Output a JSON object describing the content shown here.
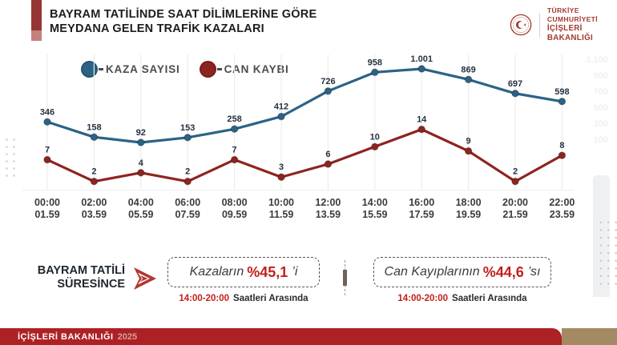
{
  "header": {
    "title_line1": "BAYRAM TATİLİNDE SAAT DİLİMLERİNE GÖRE",
    "title_line2": "MEYDANA GELEN TRAFİK KAZALARI",
    "logo": {
      "line1": "TÜRKİYE CUMHURİYETİ",
      "line2": "İÇİŞLERİ BAKANLIĞI"
    }
  },
  "legend": [
    {
      "label": "KAZA SAYISI",
      "color": "#2b6386"
    },
    {
      "label": "CAN KAYBI",
      "color": "#8e2420"
    }
  ],
  "chart_data": {
    "type": "line",
    "title": "Bayram tatilinde saat dilimlerine göre meydana gelen trafik kazaları",
    "categories": [
      [
        "00:00",
        "01.59"
      ],
      [
        "02:00",
        "03.59"
      ],
      [
        "04:00",
        "05.59"
      ],
      [
        "06:00",
        "07.59"
      ],
      [
        "08:00",
        "09.59"
      ],
      [
        "10:00",
        "11.59"
      ],
      [
        "12:00",
        "13.59"
      ],
      [
        "14:00",
        "15.59"
      ],
      [
        "16:00",
        "17.59"
      ],
      [
        "18:00",
        "19.59"
      ],
      [
        "20:00",
        "21.59"
      ],
      [
        "22:00",
        "23.59"
      ]
    ],
    "series": [
      {
        "name": "KAZA SAYISI",
        "color": "#2b6386",
        "values": [
          346,
          158,
          92,
          153,
          258,
          412,
          726,
          958,
          1001,
          869,
          697,
          598
        ],
        "labels": [
          "346",
          "158",
          "92",
          "153",
          "258",
          "412",
          "726",
          "958",
          "1.001",
          "869",
          "697",
          "598"
        ],
        "axis": "right",
        "axis_range": [
          0,
          1850
        ]
      },
      {
        "name": "CAN KAYBI",
        "color": "#8e2420",
        "values": [
          7,
          2,
          4,
          2,
          7,
          3,
          6,
          10,
          14,
          9,
          2,
          8
        ],
        "labels": [
          "7",
          "2",
          "4",
          "2",
          "7",
          "3",
          "6",
          "10",
          "14",
          "9",
          "2",
          "8"
        ],
        "axis": "secondary",
        "axis_range": [
          0,
          44
        ]
      }
    ],
    "right_axis_labels": [
      "1.100",
      "900",
      "700",
      "500",
      "300",
      "100"
    ],
    "grid": true,
    "legend_position": "top-left",
    "xlabel": "",
    "ylabel": ""
  },
  "summary": {
    "period_label_line1": "BAYRAM TATİLİ",
    "period_label_line2": "SÜRESİNCE",
    "boxes": [
      {
        "prefix": "Kazaların",
        "percent": "%45,1",
        "suffix": "’i",
        "sub_time": "14:00-20:00",
        "sub_text": "Saatleri Arasında"
      },
      {
        "prefix": "Can Kayıplarının",
        "percent": "%44,6",
        "suffix": "’sı",
        "sub_time": "14:00-20:00",
        "sub_text": "Saatleri Arasında"
      }
    ]
  },
  "footer": {
    "label": "İÇİŞLERİ BAKANLIĞI",
    "year": "2025"
  },
  "colors": {
    "accent_bar": "#963634",
    "accent_square": "#c5817d",
    "series_blue": "#2b6386",
    "series_red": "#8e2420",
    "percent_red": "#c21f1c",
    "footer_red": "#ad2125",
    "footer_tan": "#a38a62",
    "logo_red": "#a23b2e"
  }
}
